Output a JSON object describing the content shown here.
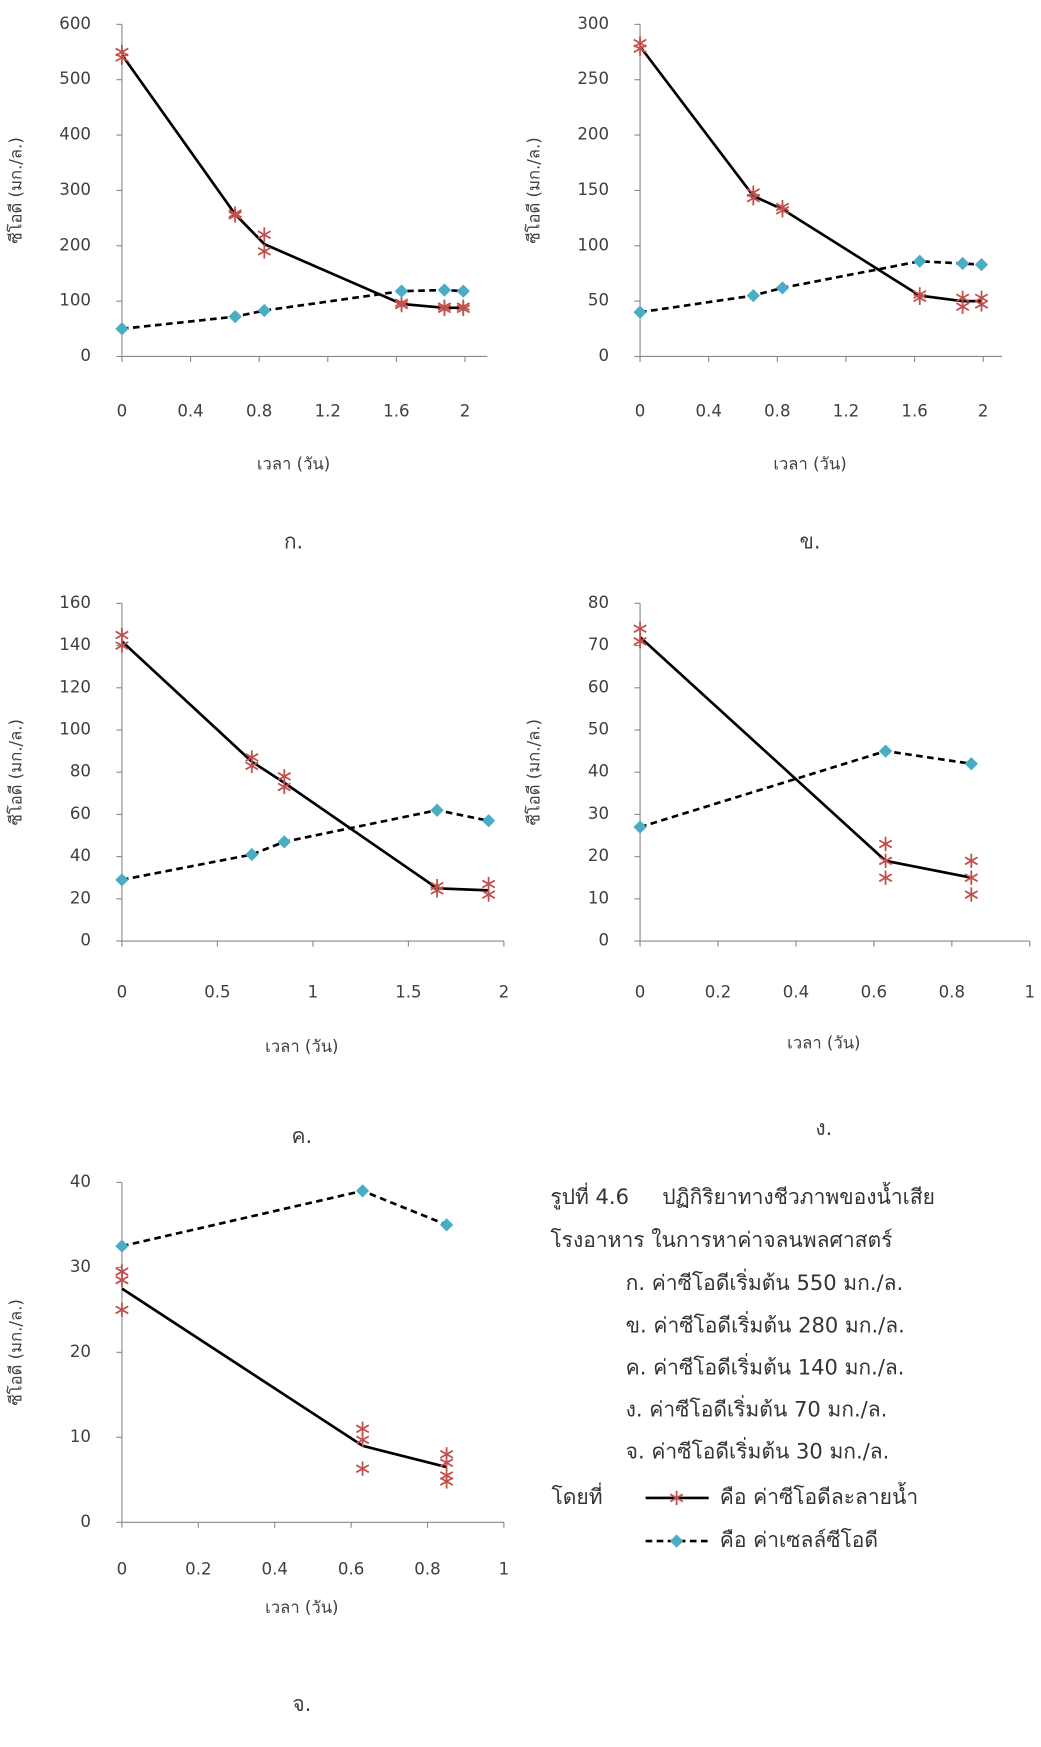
{
  "chart_data": [
    {
      "type": "line",
      "label": "ก.",
      "x_label": "เวลา (วัน)",
      "y_label": "ซีโอดี (มก./ล.)",
      "xlim": [
        0,
        2.13
      ],
      "xticks": [
        0,
        0.4,
        0.8,
        1.2,
        1.6,
        2
      ],
      "ylim": [
        0,
        600
      ],
      "yticks": [
        0,
        100,
        200,
        300,
        400,
        500,
        600
      ],
      "series": [
        {
          "color": "#000000",
          "style": "solid",
          "x": [
            0,
            0.66,
            0.83,
            1.63,
            1.88,
            1.99
          ],
          "values": [
            545,
            257,
            203,
            95,
            88,
            88
          ]
        },
        {
          "color": "#c0504d",
          "marker": "asterisk",
          "x": [
            0,
            0,
            0.66,
            0.66,
            0.83,
            0.83,
            1.63,
            1.63,
            1.88,
            1.88,
            1.99,
            1.99
          ],
          "values": [
            550,
            540,
            258,
            255,
            220,
            190,
            97,
            93,
            90,
            86,
            90,
            86
          ]
        },
        {
          "color": "#4bacc6",
          "marker": "diamond",
          "style": "dashed",
          "x": [
            0,
            0.66,
            0.83,
            1.63,
            1.88,
            1.99
          ],
          "values": [
            50,
            72,
            83,
            118,
            120,
            118
          ]
        }
      ]
    },
    {
      "type": "line",
      "label": "ข.",
      "x_label": "เวลา (วัน)",
      "y_label": "ซีโอดี (มก./ล.)",
      "xlim": [
        0,
        2.11
      ],
      "xticks": [
        0,
        0.4,
        0.8,
        1.2,
        1.6,
        2
      ],
      "ylim": [
        0,
        300
      ],
      "yticks": [
        0,
        50,
        100,
        150,
        200,
        250,
        300
      ],
      "series": [
        {
          "color": "#000000",
          "style": "solid",
          "x": [
            0,
            0.66,
            0.83,
            1.63,
            1.88,
            1.99
          ],
          "values": [
            280,
            145,
            133,
            55,
            50,
            50
          ]
        },
        {
          "color": "#c0504d",
          "marker": "asterisk",
          "x": [
            0,
            0,
            0.66,
            0.66,
            0.83,
            0.83,
            1.63,
            1.63,
            1.88,
            1.88,
            1.99,
            1.99
          ],
          "values": [
            283,
            278,
            148,
            143,
            135,
            132,
            56,
            53,
            53,
            45,
            53,
            47
          ]
        },
        {
          "color": "#4bacc6",
          "marker": "diamond",
          "style": "dashed",
          "x": [
            0,
            0.66,
            0.83,
            1.63,
            1.88,
            1.99
          ],
          "values": [
            40,
            55,
            62,
            86,
            84,
            83
          ]
        }
      ]
    },
    {
      "type": "line",
      "label": "ค.",
      "x_label": "เวลา (วัน)",
      "y_label": "ซีโอดี (มก./ล.)",
      "xlim": [
        0,
        2
      ],
      "xticks": [
        0,
        0.5,
        1,
        1.5,
        2
      ],
      "ylim": [
        0,
        160
      ],
      "yticks": [
        0,
        20,
        40,
        60,
        80,
        100,
        120,
        140,
        160
      ],
      "series": [
        {
          "color": "#000000",
          "style": "solid",
          "x": [
            0,
            0.68,
            0.85,
            1.65,
            1.92
          ],
          "values": [
            142,
            85,
            75,
            25,
            24
          ]
        },
        {
          "color": "#c0504d",
          "marker": "asterisk",
          "x": [
            0,
            0,
            0.68,
            0.68,
            0.85,
            0.85,
            1.65,
            1.65,
            1.92,
            1.92
          ],
          "values": [
            145,
            140,
            87,
            83,
            78,
            73,
            26,
            24,
            27,
            22
          ]
        },
        {
          "color": "#4bacc6",
          "marker": "diamond",
          "style": "dashed",
          "x": [
            0,
            0.68,
            0.85,
            1.65,
            1.92
          ],
          "values": [
            29,
            41,
            47,
            62,
            57
          ]
        }
      ]
    },
    {
      "type": "line",
      "label": "ง.",
      "x_label": "เวลา (วัน)",
      "y_label": "ซีโอดี (มก./ล.)",
      "xlim": [
        0,
        1
      ],
      "xticks": [
        0,
        0.2,
        0.4,
        0.6,
        0.8,
        1
      ],
      "ylim": [
        0,
        80
      ],
      "yticks": [
        0,
        10,
        20,
        30,
        40,
        50,
        60,
        70,
        80
      ],
      "series": [
        {
          "color": "#000000",
          "style": "solid",
          "x": [
            0,
            0.63,
            0.85
          ],
          "values": [
            72,
            19,
            15
          ]
        },
        {
          "color": "#c0504d",
          "marker": "asterisk",
          "x": [
            0,
            0,
            0.63,
            0.63,
            0.63,
            0.85,
            0.85,
            0.85
          ],
          "values": [
            74,
            71,
            23,
            19,
            15,
            19,
            15,
            11
          ]
        },
        {
          "color": "#4bacc6",
          "marker": "diamond",
          "style": "dashed",
          "x": [
            0,
            0.63,
            0.85
          ],
          "values": [
            27,
            45,
            42
          ]
        }
      ]
    },
    {
      "type": "line",
      "label": "จ.",
      "x_label": "เวลา (วัน)",
      "y_label": "ซีโอดี (มก./ล.)",
      "xlim": [
        0,
        1
      ],
      "xticks": [
        0,
        0.2,
        0.4,
        0.6,
        0.8,
        1
      ],
      "ylim": [
        0,
        40
      ],
      "yticks": [
        0,
        10,
        20,
        30,
        40
      ],
      "series": [
        {
          "color": "#000000",
          "style": "solid",
          "x": [
            0,
            0.63,
            0.85
          ],
          "values": [
            27.5,
            9,
            6.5
          ]
        },
        {
          "color": "#c0504d",
          "marker": "asterisk",
          "x": [
            0,
            0,
            0,
            0.63,
            0.63,
            0.63,
            0.85,
            0.85,
            0.85,
            0.85
          ],
          "values": [
            29.5,
            28.5,
            25,
            11,
            9.7,
            6.3,
            8,
            7,
            5.5,
            4.8
          ]
        },
        {
          "color": "#4bacc6",
          "marker": "diamond",
          "style": "dashed",
          "x": [
            0,
            0.63,
            0.85
          ],
          "values": [
            32.5,
            39,
            35
          ]
        }
      ]
    }
  ],
  "figure": {
    "number": "รูปที่ 4.6",
    "title": "ปฏิกิริยาทางชีวภาพของน้ำเสีย",
    "title_line2": "โรงอาหาร ในการหาค่าจลนพลศาสตร์",
    "items": [
      "ก. ค่าซีโอดีเริ่มต้น 550 มก./ล.",
      "ข. ค่าซีโอดีเริ่มต้น 280 มก./ล.",
      "ค. ค่าซีโอดีเริ่มต้น 140 มก./ล.",
      "ง. ค่าซีโอดีเริ่มต้น 70 มก./ล.",
      "จ. ค่าซีโอดีเริ่มต้น 30 มก./ล."
    ],
    "legend_prefix": "โดยที่",
    "legend": [
      {
        "label": "คือ ค่าซีโอดีละลายน้ำ",
        "line_color": "#000000",
        "marker_color": "#c0504d",
        "marker": "asterisk",
        "style": "solid"
      },
      {
        "label": "คือ ค่าเซลล์ซีโอดี",
        "line_color": "#000000",
        "marker_color": "#4bacc6",
        "marker": "diamond",
        "style": "dashed"
      }
    ]
  }
}
